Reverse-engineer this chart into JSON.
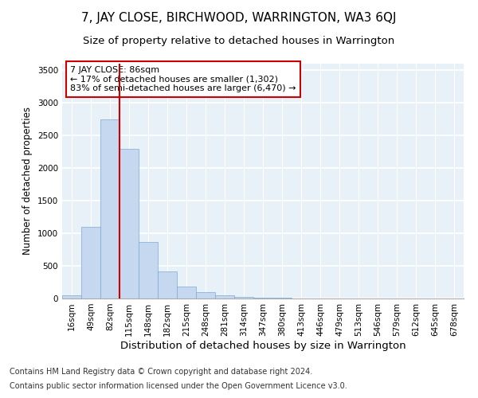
{
  "title": "7, JAY CLOSE, BIRCHWOOD, WARRINGTON, WA3 6QJ",
  "subtitle": "Size of property relative to detached houses in Warrington",
  "xlabel": "Distribution of detached houses by size in Warrington",
  "ylabel": "Number of detached properties",
  "footnote1": "Contains HM Land Registry data © Crown copyright and database right 2024.",
  "footnote2": "Contains public sector information licensed under the Open Government Licence v3.0.",
  "categories": [
    "16sqm",
    "49sqm",
    "82sqm",
    "115sqm",
    "148sqm",
    "182sqm",
    "215sqm",
    "248sqm",
    "281sqm",
    "314sqm",
    "347sqm",
    "380sqm",
    "413sqm",
    "446sqm",
    "479sqm",
    "513sqm",
    "546sqm",
    "579sqm",
    "612sqm",
    "645sqm",
    "678sqm"
  ],
  "values": [
    50,
    1100,
    2750,
    2300,
    870,
    420,
    180,
    100,
    50,
    30,
    15,
    8,
    5,
    3,
    2,
    1,
    1,
    1,
    0,
    0,
    0
  ],
  "bar_color": "#c5d8f0",
  "bar_edge_color": "#7aaad4",
  "vline_color": "#cc0000",
  "vline_index": 2,
  "annotation_text": "7 JAY CLOSE: 86sqm\n← 17% of detached houses are smaller (1,302)\n83% of semi-detached houses are larger (6,470) →",
  "annotation_box_color": "#cc0000",
  "ylim": [
    0,
    3600
  ],
  "yticks": [
    0,
    500,
    1000,
    1500,
    2000,
    2500,
    3000,
    3500
  ],
  "plot_bg_color": "#e8f0f8",
  "fig_bg_color": "#ffffff",
  "title_fontsize": 11,
  "subtitle_fontsize": 9.5,
  "annotation_fontsize": 8,
  "xlabel_fontsize": 9.5,
  "ylabel_fontsize": 8.5,
  "footnote_fontsize": 7,
  "tick_fontsize": 7.5
}
